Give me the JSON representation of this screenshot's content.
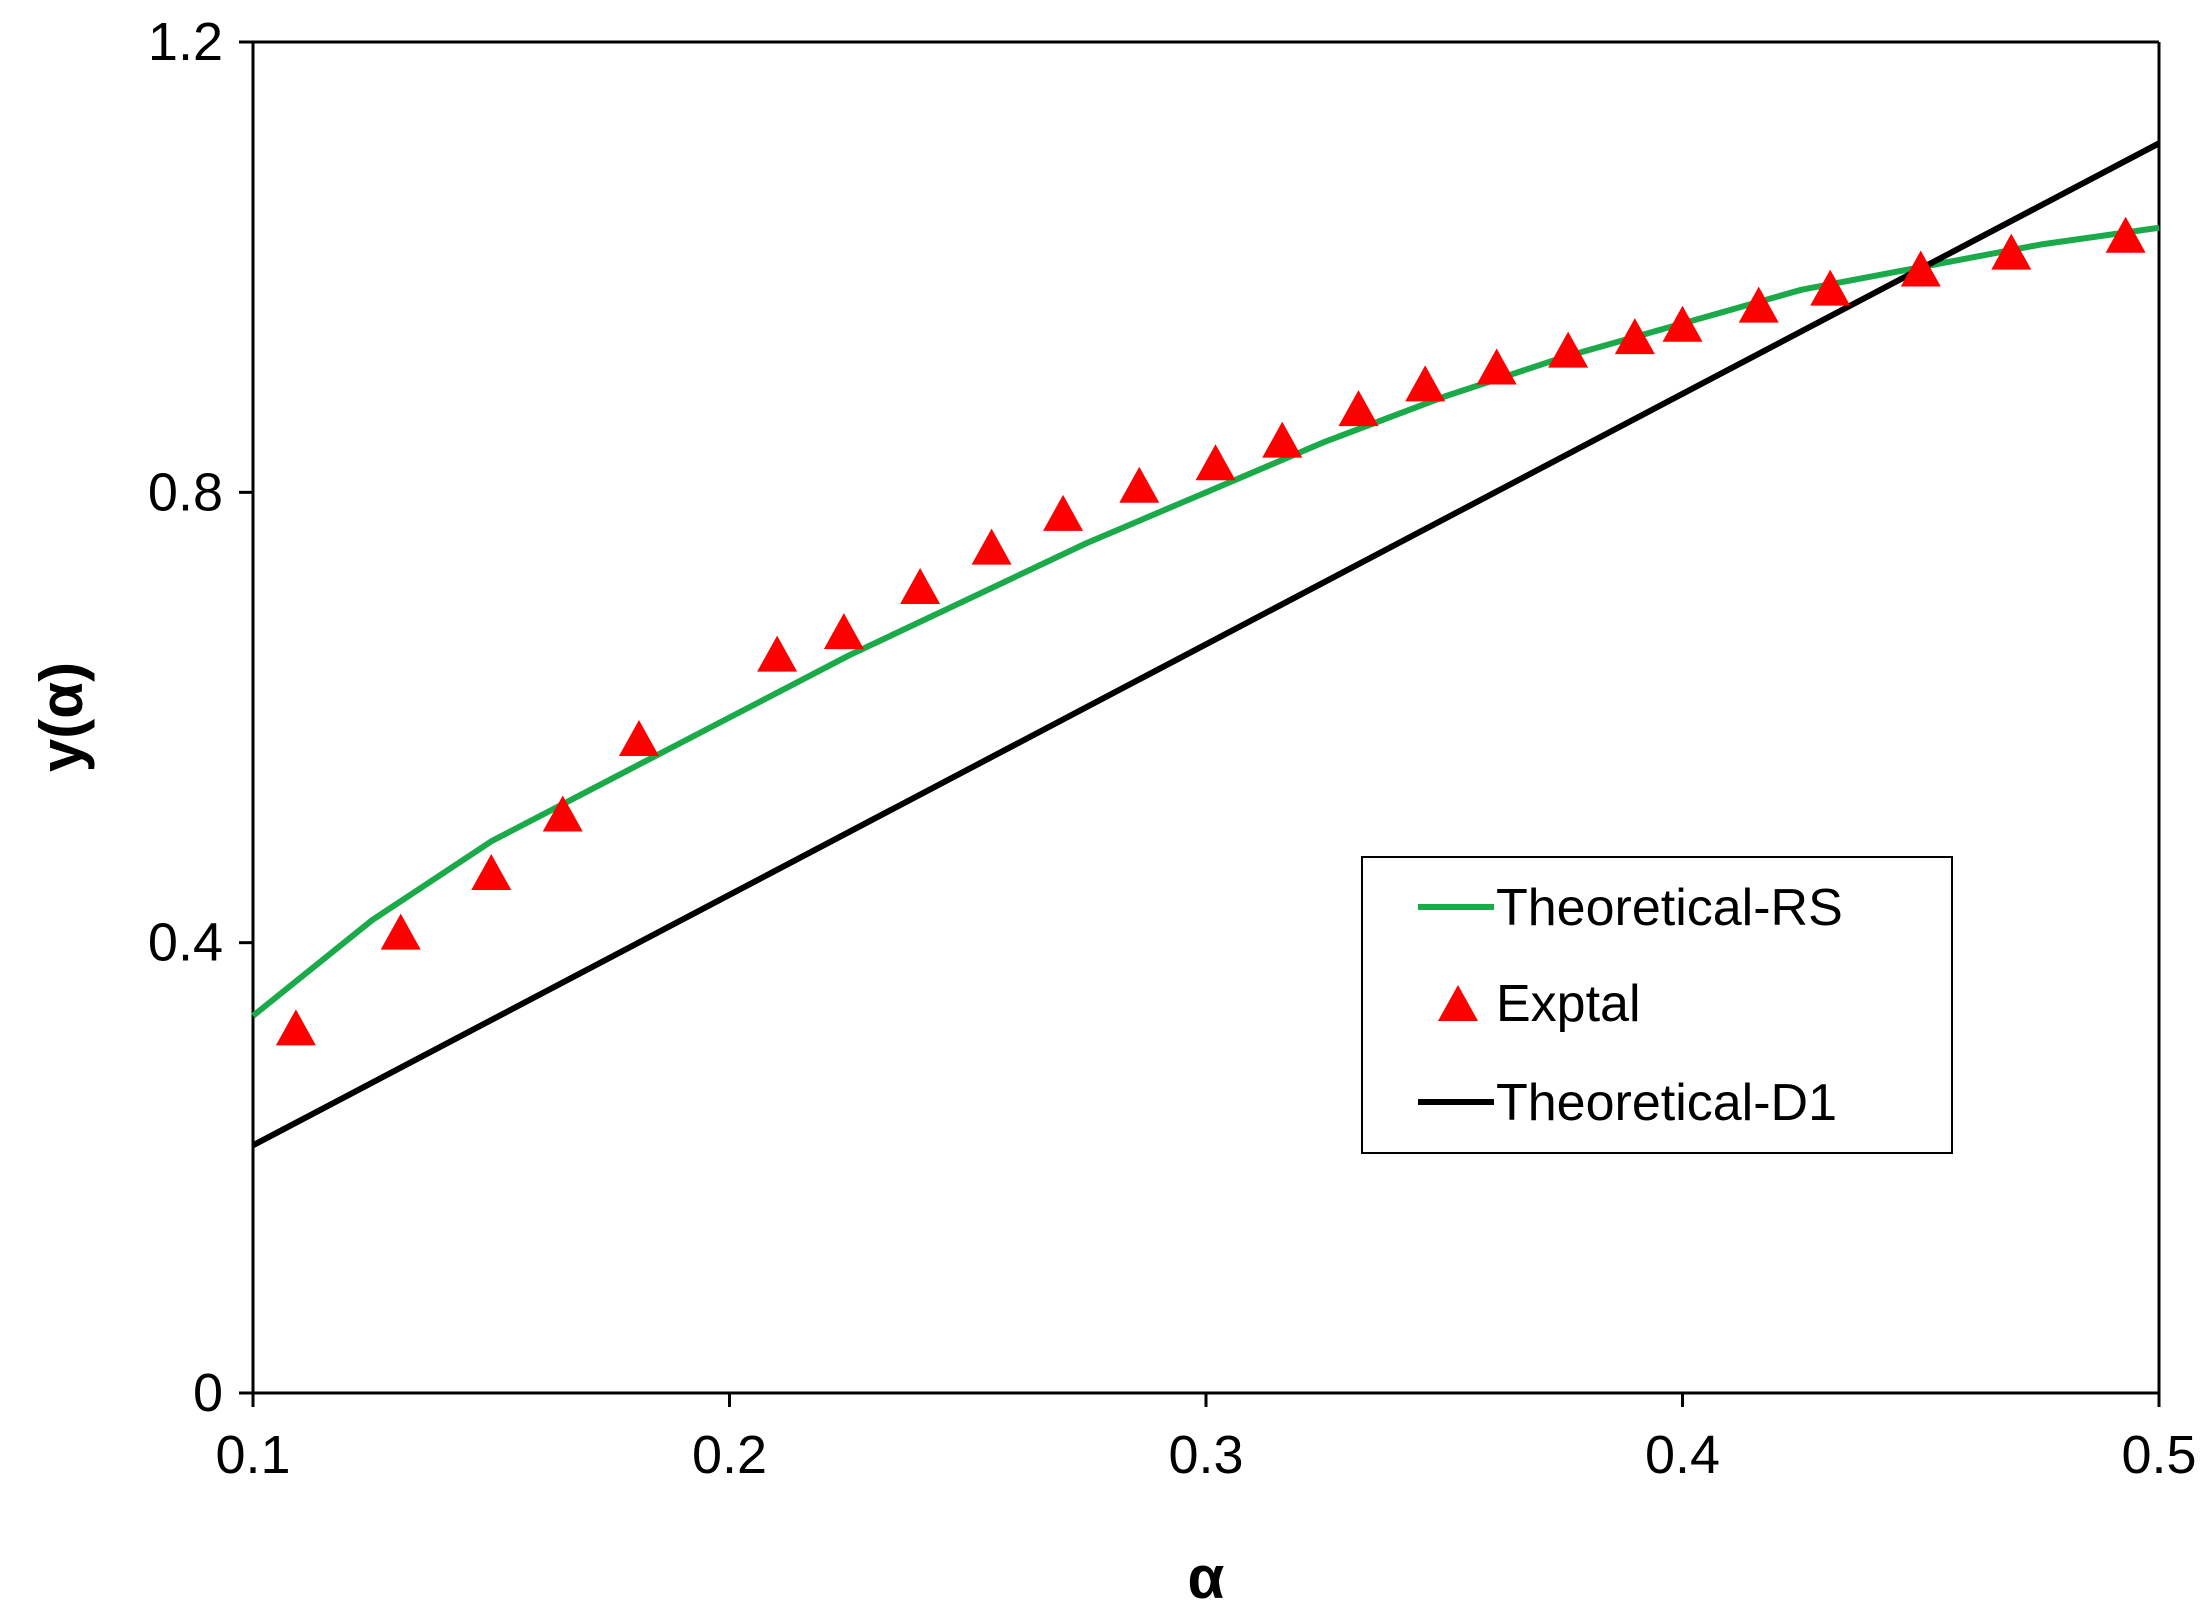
{
  "chart_data": {
    "type": "line",
    "title": "",
    "xlabel": "α",
    "ylabel": "y(α)",
    "xlim": [
      0.1,
      0.5
    ],
    "ylim": [
      0,
      1.2
    ],
    "xticks": [
      0.1,
      0.2,
      0.3,
      0.4,
      0.5
    ],
    "xtick_labels": [
      "0.1",
      "0.2",
      "0.3",
      "0.4",
      "0.5"
    ],
    "yticks": [
      0,
      0.4,
      0.8,
      1.2
    ],
    "ytick_labels": [
      "0",
      "0.4",
      "0.8",
      "1.2"
    ],
    "grid": false,
    "legend_position": "center-right",
    "series": [
      {
        "name": "Theoretical-RS",
        "kind": "line",
        "color": "#1aaa4a",
        "x": [
          0.1,
          0.125,
          0.15,
          0.175,
          0.2,
          0.225,
          0.25,
          0.275,
          0.3,
          0.325,
          0.35,
          0.375,
          0.4,
          0.425,
          0.45,
          0.475,
          0.5
        ],
        "y": [
          0.335,
          0.42,
          0.49,
          0.545,
          0.6,
          0.655,
          0.705,
          0.755,
          0.8,
          0.845,
          0.885,
          0.92,
          0.95,
          0.98,
          1.0,
          1.02,
          1.035
        ]
      },
      {
        "name": "Exptal",
        "kind": "marker",
        "marker": "triangle",
        "color": "#ff0000",
        "x": [
          0.109,
          0.131,
          0.15,
          0.165,
          0.181,
          0.21,
          0.224,
          0.24,
          0.255,
          0.27,
          0.286,
          0.302,
          0.316,
          0.332,
          0.346,
          0.361,
          0.376,
          0.39,
          0.4,
          0.416,
          0.431,
          0.45,
          0.469,
          0.493
        ],
        "y": [
          0.323,
          0.408,
          0.461,
          0.513,
          0.58,
          0.655,
          0.675,
          0.715,
          0.75,
          0.78,
          0.805,
          0.825,
          0.845,
          0.873,
          0.895,
          0.91,
          0.925,
          0.937,
          0.948,
          0.965,
          0.98,
          0.997,
          1.012,
          1.027
        ]
      },
      {
        "name": "Theoretical-D1",
        "kind": "line",
        "color": "#000000",
        "x": [
          0.1,
          0.5
        ],
        "y": [
          0.22,
          1.11
        ]
      }
    ]
  }
}
